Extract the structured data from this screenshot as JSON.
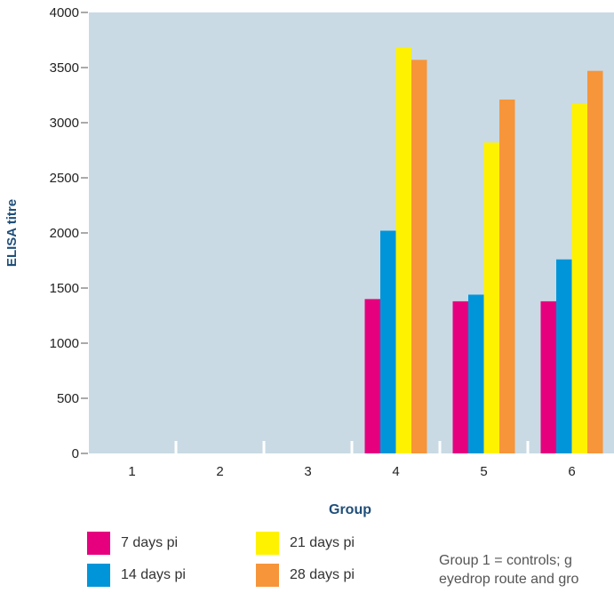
{
  "chart_data": {
    "type": "bar",
    "xlabel": "Group",
    "ylabel": "ELISA titre",
    "ylim": [
      0,
      4000
    ],
    "yticks": [
      0,
      500,
      1000,
      1500,
      2000,
      2500,
      3000,
      3500,
      4000
    ],
    "categories": [
      "1",
      "2",
      "3",
      "4",
      "5",
      "6"
    ],
    "series": [
      {
        "name": "7 days pi",
        "color": "#e6007e",
        "values": [
          0,
          0,
          0,
          1400,
          1380,
          1380
        ]
      },
      {
        "name": "14 days pi",
        "color": "#0095d9",
        "values": [
          0,
          0,
          0,
          2020,
          1440,
          1760
        ]
      },
      {
        "name": "21 days pi",
        "color": "#fff200",
        "values": [
          0,
          0,
          0,
          3680,
          2820,
          3170
        ]
      },
      {
        "name": "28 days pi",
        "color": "#f7953a",
        "values": [
          0,
          0,
          0,
          3570,
          3210,
          3470
        ]
      }
    ],
    "plot_background": "#c9dae4",
    "legend_position": "bottom"
  },
  "note": {
    "line1": "Group 1 = controls; g",
    "line2": "eyedrop route and gro"
  }
}
